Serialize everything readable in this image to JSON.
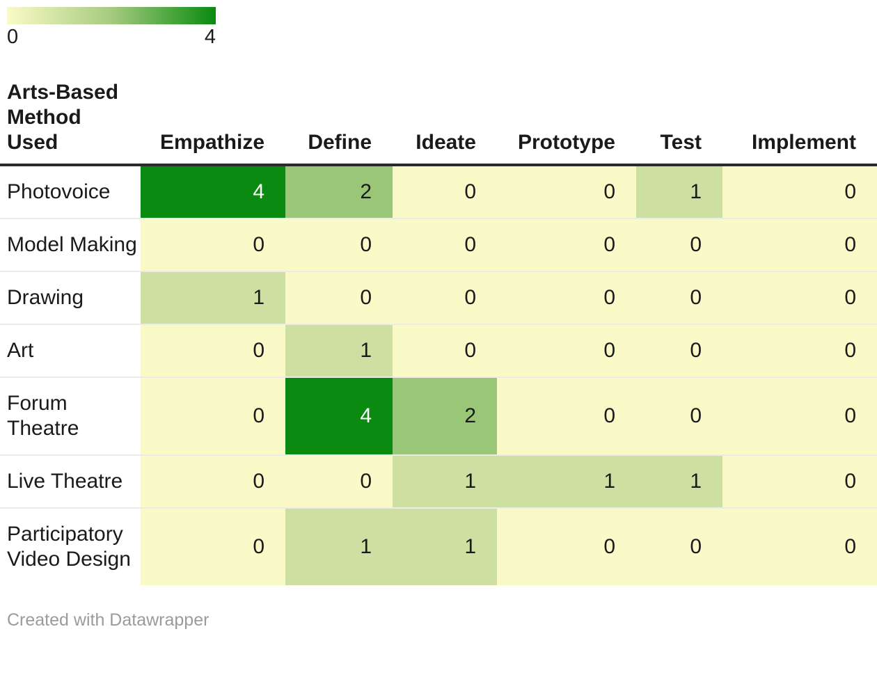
{
  "legend": {
    "min_label": "0",
    "max_label": "4",
    "gradient": [
      "#fafac8",
      "#a6cb7f",
      "#0a8a10"
    ]
  },
  "header": {
    "row_label_lines": [
      "Arts-Based",
      "Method",
      "Used"
    ]
  },
  "chart_data": {
    "type": "heatmap",
    "title": "Arts-Based Method Used",
    "columns": [
      "Empathize",
      "Define",
      "Ideate",
      "Prototype",
      "Test",
      "Implement"
    ],
    "rows": [
      "Photovoice",
      "Model Making",
      "Drawing",
      "Art",
      "Forum Theatre",
      "Live Theatre",
      "Participatory Video Design"
    ],
    "values": [
      [
        4,
        2,
        0,
        0,
        1,
        0
      ],
      [
        0,
        0,
        0,
        0,
        0,
        0
      ],
      [
        1,
        0,
        0,
        0,
        0,
        0
      ],
      [
        0,
        1,
        0,
        0,
        0,
        0
      ],
      [
        0,
        4,
        2,
        0,
        0,
        0
      ],
      [
        0,
        0,
        1,
        1,
        1,
        0
      ],
      [
        0,
        1,
        1,
        0,
        0,
        0
      ]
    ],
    "scale_range": [
      0,
      4
    ],
    "color_scale": {
      "0": "#fafac8",
      "1": "#cde0a2",
      "2": "#9ac677",
      "4": "#0a8a10"
    },
    "value_text_color": "#1a1a1a",
    "max_value_text_color": "#ffffff",
    "legend_position": "top-left",
    "grid": "row-separators"
  },
  "footer": {
    "credit": "Created with Datawrapper"
  }
}
